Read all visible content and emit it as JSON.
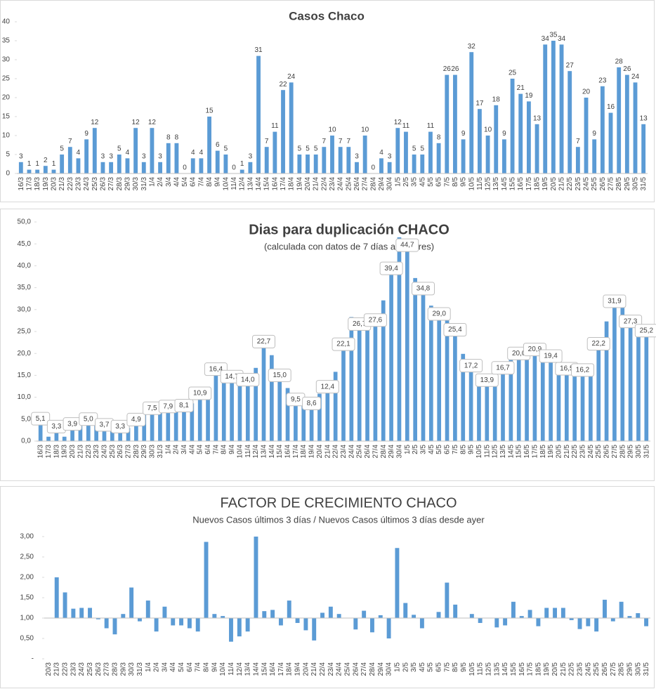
{
  "chart_data": [
    {
      "type": "bar",
      "title": "Casos  Chaco",
      "color": "#5b9bd5",
      "categories": [
        "16/3",
        "17/3",
        "18/3",
        "19/3",
        "20/3",
        "21/3",
        "22/3",
        "23/3",
        "24/3",
        "25/3",
        "26/3",
        "27/3",
        "28/3",
        "29/3",
        "30/3",
        "31/3",
        "1/4",
        "2/4",
        "3/4",
        "4/4",
        "5/4",
        "6/4",
        "7/4",
        "8/4",
        "9/4",
        "10/4",
        "11/4",
        "12/4",
        "13/4",
        "14/4",
        "15/4",
        "16/4",
        "17/4",
        "18/4",
        "19/4",
        "20/4",
        "21/4",
        "22/4",
        "23/4",
        "24/4",
        "25/4",
        "26/4",
        "27/4",
        "28/4",
        "29/4",
        "30/4",
        "1/5",
        "2/5",
        "3/5",
        "4/5",
        "5/5",
        "6/5",
        "7/5",
        "8/5",
        "9/5",
        "10/5",
        "11/5",
        "12/5",
        "13/5",
        "14/5",
        "15/5",
        "16/5",
        "17/5",
        "18/5",
        "19/5",
        "20/5",
        "21/5",
        "22/5",
        "23/5",
        "24/5",
        "25/5",
        "26/5",
        "27/5",
        "28/5",
        "29/5",
        "30/5",
        "31/5"
      ],
      "values": [
        3,
        1,
        1,
        2,
        1,
        5,
        7,
        4,
        9,
        12,
        3,
        3,
        5,
        4,
        12,
        3,
        12,
        3,
        8,
        8,
        0,
        4,
        4,
        15,
        6,
        5,
        0,
        1,
        3,
        31,
        7,
        11,
        22,
        24,
        5,
        5,
        5,
        7,
        10,
        7,
        7,
        3,
        10,
        0,
        4,
        3,
        12,
        11,
        5,
        5,
        11,
        8,
        26,
        26,
        9,
        32,
        17,
        10,
        18,
        9,
        25,
        21,
        19,
        13,
        34,
        35,
        34,
        27,
        7,
        20,
        9,
        23,
        16,
        28,
        26,
        24,
        13
      ],
      "ylim": [
        0,
        40
      ],
      "yticks": [
        0,
        5,
        10,
        15,
        20,
        25,
        30,
        35,
        40
      ],
      "grid": false
    },
    {
      "type": "bar",
      "title": "Dias para duplicación CHACO",
      "subtitle": "(calculada con datos de 7 días anteriores)",
      "color": "#5b9bd5",
      "categories": [
        "16/3",
        "17/3",
        "18/3",
        "19/3",
        "20/3",
        "21/3",
        "22/3",
        "23/3",
        "24/3",
        "25/3",
        "26/3",
        "27/3",
        "28/3",
        "29/3",
        "30/3",
        "31/3",
        "1/4",
        "2/4",
        "3/4",
        "4/4",
        "5/4",
        "6/4",
        "7/4",
        "8/4",
        "9/4",
        "10/4",
        "11/4",
        "12/4",
        "13/4",
        "14/4",
        "15/4",
        "16/4",
        "17/4",
        "18/4",
        "19/4",
        "20/4",
        "21/4",
        "22/4",
        "23/4",
        "24/4",
        "25/4",
        "26/4",
        "27/4",
        "28/4",
        "29/4",
        "30/4",
        "1/5",
        "2/5",
        "3/5",
        "4/5",
        "5/5",
        "6/5",
        "7/5",
        "8/5",
        "9/5",
        "10/5",
        "11/5",
        "12/5",
        "13/5",
        "14/5",
        "15/5",
        "16/5",
        "17/5",
        "18/5",
        "19/5",
        "20/5",
        "21/5",
        "22/5",
        "23/5",
        "24/5",
        "25/5",
        "26/5",
        "27/5",
        "28/5",
        "29/5",
        "30/5",
        "31/5"
      ],
      "values": [
        5.1,
        1.0,
        3.3,
        1.0,
        3.9,
        5.3,
        5.0,
        4.4,
        3.7,
        3.0,
        3.3,
        3.0,
        4.9,
        6.0,
        7.5,
        8.9,
        7.9,
        7.9,
        8.1,
        8.6,
        10.9,
        12.4,
        16.4,
        14.8,
        14.7,
        14.1,
        14.0,
        16.7,
        22.7,
        19.6,
        15.0,
        12.1,
        9.5,
        8.3,
        8.6,
        10.8,
        12.4,
        15.8,
        22.1,
        28.3,
        26.7,
        27.4,
        27.6,
        32.1,
        39.4,
        46.5,
        44.7,
        37.2,
        34.8,
        30.9,
        29.0,
        28.8,
        25.4,
        19.9,
        17.2,
        14.7,
        13.9,
        14.4,
        16.7,
        19.3,
        20.0,
        21.9,
        20.9,
        20.3,
        19.4,
        17.3,
        16.5,
        15.8,
        16.2,
        17.7,
        22.2,
        27.3,
        31.9,
        31.2,
        27.3,
        25.7,
        25.2
      ],
      "value_labels": [
        "5,1",
        null,
        "3,3",
        null,
        "3,9",
        null,
        "5,0",
        null,
        "3,7",
        null,
        "3,3",
        null,
        "4,9",
        null,
        "7,5",
        null,
        "7,9",
        null,
        "8,1",
        null,
        "10,9",
        null,
        "16,4",
        null,
        "14,7",
        null,
        "14,0",
        null,
        "22,7",
        null,
        "15,0",
        null,
        "9,5",
        null,
        "8,6",
        null,
        "12,4",
        null,
        "22,1",
        null,
        "26,7",
        null,
        "27,6",
        null,
        "39,4",
        null,
        "44,7",
        null,
        "34,8",
        null,
        "29,0",
        null,
        "25,4",
        null,
        "17,2",
        null,
        "13,9",
        null,
        "16,7",
        null,
        "20,0",
        null,
        "20,9",
        null,
        "19,4",
        null,
        "16,5",
        null,
        "16,2",
        null,
        "22,2",
        null,
        "31,9",
        null,
        "27,3",
        null,
        "25,2"
      ],
      "ylim": [
        0,
        50
      ],
      "yticks": [
        {
          "value": 0,
          "label": "0,0"
        },
        {
          "value": 5,
          "label": "5,0"
        },
        {
          "value": 10,
          "label": "10,0"
        },
        {
          "value": 15,
          "label": "15,0"
        },
        {
          "value": 20,
          "label": "20,0"
        },
        {
          "value": 25,
          "label": "25,0"
        },
        {
          "value": 30,
          "label": "30,0"
        },
        {
          "value": 35,
          "label": "35,0"
        },
        {
          "value": 40,
          "label": "40,0"
        },
        {
          "value": 45,
          "label": "45,0"
        },
        {
          "value": 50,
          "label": "50,0"
        }
      ],
      "grid": false
    },
    {
      "type": "bar",
      "title": "FACTOR DE CRECIMIENTO CHACO",
      "subtitle": "Nuevos Casos últimos 3 días / Nuevos Casos últimos 3 días desde ayer",
      "color": "#5b9bd5",
      "categories": [
        "20/3",
        "21/3",
        "22/3",
        "23/3",
        "24/3",
        "25/3",
        "26/3",
        "27/3",
        "28/3",
        "29/3",
        "30/3",
        "31/3",
        "1/4",
        "2/4",
        "3/4",
        "4/4",
        "5/4",
        "6/4",
        "7/4",
        "8/4",
        "9/4",
        "10/4",
        "11/4",
        "12/4",
        "13/4",
        "14/4",
        "15/4",
        "16/4",
        "17/4",
        "18/4",
        "19/4",
        "20/4",
        "21/4",
        "22/4",
        "23/4",
        "24/4",
        "25/4",
        "26/4",
        "27/4",
        "28/4",
        "29/4",
        "30/4",
        "1/5",
        "2/5",
        "3/5",
        "4/5",
        "5/5",
        "6/5",
        "7/5",
        "8/5",
        "9/5",
        "10/5",
        "11/5",
        "12/5",
        "13/5",
        "14/5",
        "15/5",
        "16/5",
        "17/5",
        "18/5",
        "19/5",
        "20/5",
        "21/5",
        "22/5",
        "23/5",
        "24/5",
        "25/5",
        "26/5",
        "27/5",
        "28/5",
        "29/5",
        "30/5",
        "31/5"
      ],
      "values": [
        1.0,
        2.0,
        1.63,
        1.23,
        1.25,
        1.25,
        0.97,
        0.75,
        0.6,
        1.1,
        1.75,
        0.92,
        1.43,
        0.67,
        1.28,
        0.82,
        0.82,
        0.75,
        0.67,
        2.87,
        1.1,
        1.05,
        0.42,
        0.55,
        0.67,
        3.0,
        1.17,
        1.2,
        0.82,
        1.43,
        0.88,
        0.7,
        0.45,
        1.13,
        1.28,
        1.1,
        1.0,
        0.72,
        1.18,
        0.65,
        1.07,
        0.5,
        2.72,
        1.37,
        1.08,
        0.75,
        1.0,
        1.15,
        1.87,
        1.33,
        1.0,
        1.1,
        0.88,
        1.0,
        0.77,
        0.82,
        1.4,
        1.05,
        1.2,
        0.8,
        1.25,
        1.25,
        1.25,
        0.95,
        0.73,
        0.8,
        0.67,
        1.45,
        0.92,
        1.4,
        1.05,
        1.12,
        0.8
      ],
      "ylim": [
        0,
        3
      ],
      "yticks": [
        {
          "value": 0,
          "label": "-"
        },
        {
          "value": 0.5,
          "label": "0,50"
        },
        {
          "value": 1,
          "label": "1,00"
        },
        {
          "value": 1.5,
          "label": "1,50"
        },
        {
          "value": 2,
          "label": "2,00"
        },
        {
          "value": 2.5,
          "label": "2,50"
        },
        {
          "value": 3,
          "label": "3,00"
        }
      ],
      "grid": false,
      "x_axis_crosses": 1
    }
  ]
}
